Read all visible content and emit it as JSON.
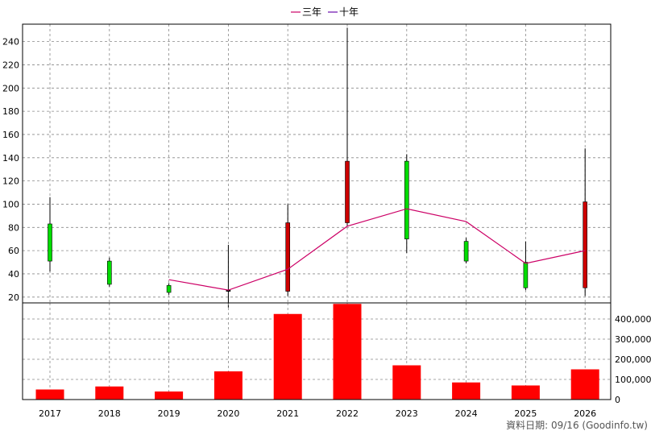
{
  "chart_data": {
    "type": "candlestick+bar",
    "legend": [
      {
        "label": "三年",
        "color": "#cc0066"
      },
      {
        "label": "十年",
        "color": "#6a0dad"
      }
    ],
    "categories": [
      "2017",
      "2018",
      "2019",
      "2020",
      "2021",
      "2022",
      "2023",
      "2024",
      "2025",
      "2026"
    ],
    "price": {
      "ylim": [
        15,
        255
      ],
      "ticks": [
        20,
        40,
        60,
        80,
        100,
        120,
        140,
        160,
        180,
        200,
        220,
        240
      ],
      "candles": [
        {
          "open": 51,
          "close": 83,
          "high": 106,
          "low": 42,
          "direction": "down"
        },
        {
          "open": 31,
          "close": 51,
          "high": 54,
          "low": 29,
          "direction": "down"
        },
        {
          "open": 24,
          "close": 30,
          "high": 32,
          "low": 22,
          "direction": "down"
        },
        {
          "open": 25,
          "close": 26,
          "high": 65,
          "low": 11,
          "direction": "flat"
        },
        {
          "open": 84,
          "close": 25,
          "high": 100,
          "low": 21,
          "direction": "up"
        },
        {
          "open": 137,
          "close": 84,
          "high": 252,
          "low": 81,
          "direction": "up"
        },
        {
          "open": 70,
          "close": 137,
          "high": 143,
          "low": 58,
          "direction": "down"
        },
        {
          "open": 51,
          "close": 68,
          "high": 71,
          "low": 49,
          "direction": "down"
        },
        {
          "open": 28,
          "close": 50,
          "high": 68,
          "low": 26,
          "direction": "down"
        },
        {
          "open": 102,
          "close": 28,
          "high": 148,
          "low": 21,
          "direction": "up"
        }
      ],
      "three_year_avg": [
        null,
        null,
        35,
        26,
        44,
        81,
        96,
        85,
        49,
        60
      ]
    },
    "volume": {
      "ylim": [
        0,
        480000
      ],
      "ticks": [
        0,
        100000,
        200000,
        300000,
        400000
      ],
      "tick_labels": [
        "0",
        "100,000",
        "200,000",
        "300,000",
        "400,000"
      ],
      "values": [
        50000,
        65000,
        40000,
        140000,
        425000,
        475000,
        170000,
        85000,
        70000,
        150000
      ]
    },
    "colors": {
      "up": "#cc0000",
      "down": "#00dd00",
      "bar": "#ff0000",
      "avg_line": "#cc0066",
      "grid": "#888888"
    }
  },
  "source_text": "資料日期: 09/16 (Goodinfo.tw)"
}
